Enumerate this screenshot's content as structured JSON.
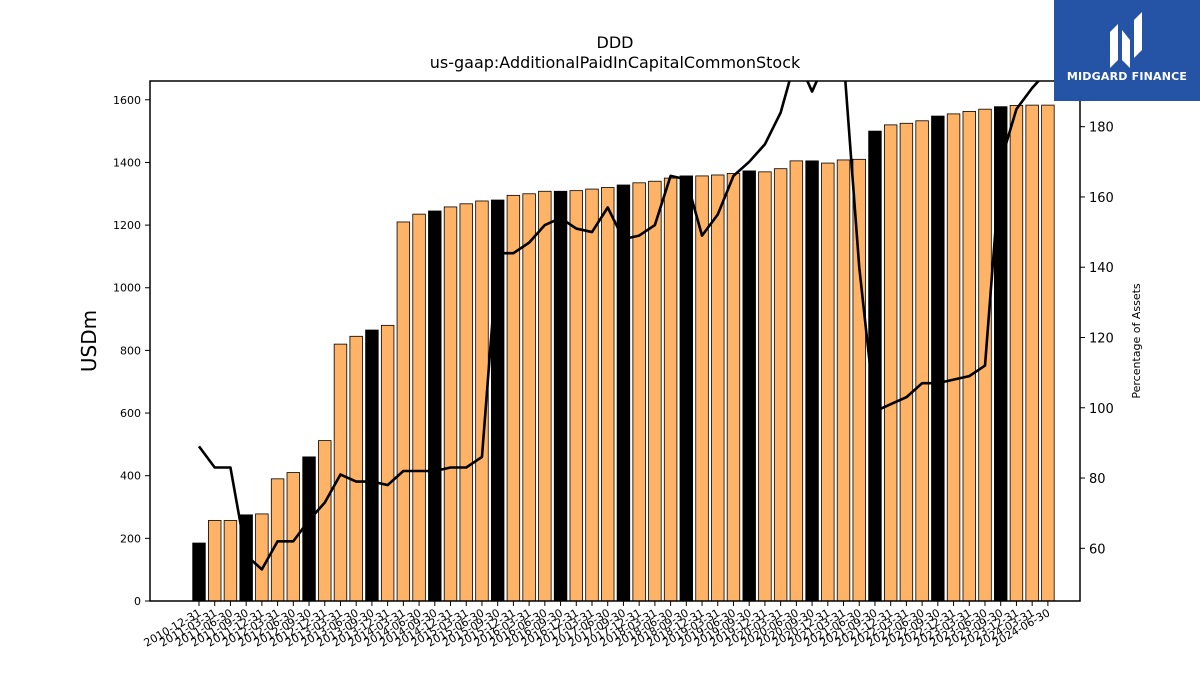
{
  "chart_data": {
    "type": "bar",
    "title": "DDD",
    "subtitle": "us-gaap:AdditionalPaidInCapitalCommonStock",
    "ylabel": "USDm",
    "y2label": "Percentage of Assets",
    "ylim": [
      0,
      1660
    ],
    "y2lim": [
      45,
      193
    ],
    "yticks": [
      0,
      200,
      400,
      600,
      800,
      1000,
      1200,
      1400,
      1600
    ],
    "y2ticks": [
      60,
      80,
      100,
      120,
      140,
      160,
      180
    ],
    "colors": {
      "annual": "#000000",
      "quarterly": "#ffb366",
      "line": "#000000"
    },
    "categories": [
      "2010-12-31",
      "2011-03-31",
      "2011-06-30",
      "2011-09-30",
      "2011-12-31",
      "2012-03-31",
      "2012-06-30",
      "2012-09-30",
      "2012-12-31",
      "2013-03-31",
      "2013-06-30",
      "2013-09-30",
      "2013-12-31",
      "2014-03-31",
      "2014-06-30",
      "2014-09-30",
      "2014-12-31",
      "2015-03-31",
      "2015-06-30",
      "2015-09-30",
      "2015-12-31",
      "2016-03-31",
      "2016-06-30",
      "2016-09-30",
      "2016-12-31",
      "2017-03-31",
      "2017-06-30",
      "2017-09-30",
      "2017-12-31",
      "2018-03-31",
      "2018-06-30",
      "2018-09-30",
      "2018-12-31",
      "2019-03-31",
      "2019-06-30",
      "2019-09-30",
      "2019-12-31",
      "2020-03-31",
      "2020-06-30",
      "2020-09-30",
      "2020-12-31",
      "2021-03-31",
      "2021-06-30",
      "2021-09-30",
      "2021-12-31",
      "2022-03-31",
      "2022-06-30",
      "2022-09-30",
      "2022-12-31",
      "2023-03-31",
      "2023-06-30",
      "2023-09-30",
      "2023-12-31",
      "2024-03-31",
      "2024-06-30"
    ],
    "annual": [
      true,
      false,
      false,
      true,
      false,
      false,
      false,
      true,
      false,
      false,
      false,
      true,
      false,
      false,
      false,
      true,
      false,
      false,
      false,
      true,
      false,
      false,
      false,
      true,
      false,
      false,
      false,
      true,
      false,
      false,
      false,
      true,
      false,
      false,
      false,
      true,
      false,
      false,
      false,
      true,
      false,
      false,
      false,
      true,
      false,
      false,
      false,
      true,
      false,
      false,
      false,
      true,
      false,
      false,
      false
    ],
    "values": [
      185,
      257,
      257,
      275,
      278,
      390,
      410,
      460,
      512,
      820,
      845,
      865,
      880,
      1210,
      1235,
      1245,
      1258,
      1268,
      1277,
      1280,
      1295,
      1300,
      1308,
      1308,
      1310,
      1315,
      1320,
      1328,
      1335,
      1340,
      1350,
      1357,
      1357,
      1360,
      1365,
      1373,
      1370,
      1380,
      1405,
      1405,
      1398,
      1408,
      1410,
      1500,
      1520,
      1525,
      1533,
      1548,
      1555,
      1563,
      1570,
      1578,
      1582,
      1583,
      1583
    ],
    "pct_of_assets": [
      89,
      83,
      83,
      58,
      54,
      62,
      62,
      68,
      73,
      81,
      79,
      79,
      78,
      82,
      82,
      82,
      83,
      83,
      86,
      144,
      144,
      147,
      152,
      154,
      151,
      150,
      157,
      148,
      149,
      152,
      166,
      165,
      149,
      155,
      166,
      170,
      175,
      184,
      200,
      190,
      200,
      200,
      140,
      99,
      101,
      103,
      107,
      107,
      108,
      109,
      112,
      170,
      185,
      191,
      196
    ]
  },
  "logo": {
    "text": "MIDGARD FINANCE"
  }
}
